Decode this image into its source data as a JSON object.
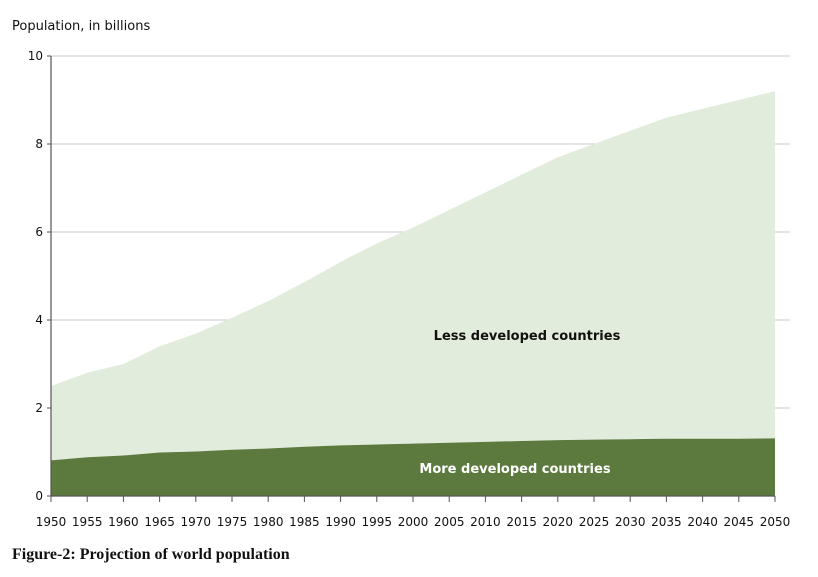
{
  "caption": "Figure-2: Projection of world population",
  "colors": {
    "less_developed": "#e2ecdc",
    "more_developed": "#5c7a3e",
    "grid": "#c8c8c8",
    "axis": "#555555"
  },
  "chart_data": {
    "type": "area",
    "stacked": true,
    "ylabel": "Population, in billions",
    "ylim": [
      0,
      10
    ],
    "yticks": [
      0,
      2,
      4,
      6,
      8,
      10
    ],
    "x": [
      1950,
      1955,
      1960,
      1965,
      1970,
      1975,
      1980,
      1985,
      1990,
      1995,
      2000,
      2005,
      2010,
      2015,
      2020,
      2025,
      2030,
      2035,
      2040,
      2045,
      2050
    ],
    "grid": "horizontal",
    "series": [
      {
        "name": "More developed countries",
        "values": [
          0.81,
          0.88,
          0.92,
          0.99,
          1.01,
          1.05,
          1.08,
          1.12,
          1.15,
          1.17,
          1.19,
          1.21,
          1.23,
          1.25,
          1.27,
          1.28,
          1.29,
          1.3,
          1.3,
          1.3,
          1.31
        ]
      },
      {
        "name": "Less developed countries",
        "values": [
          1.69,
          1.92,
          2.08,
          2.41,
          2.68,
          3.0,
          3.35,
          3.74,
          4.17,
          4.57,
          4.91,
          5.29,
          5.67,
          6.05,
          6.43,
          6.72,
          7.01,
          7.3,
          7.5,
          7.7,
          7.89
        ]
      }
    ]
  }
}
